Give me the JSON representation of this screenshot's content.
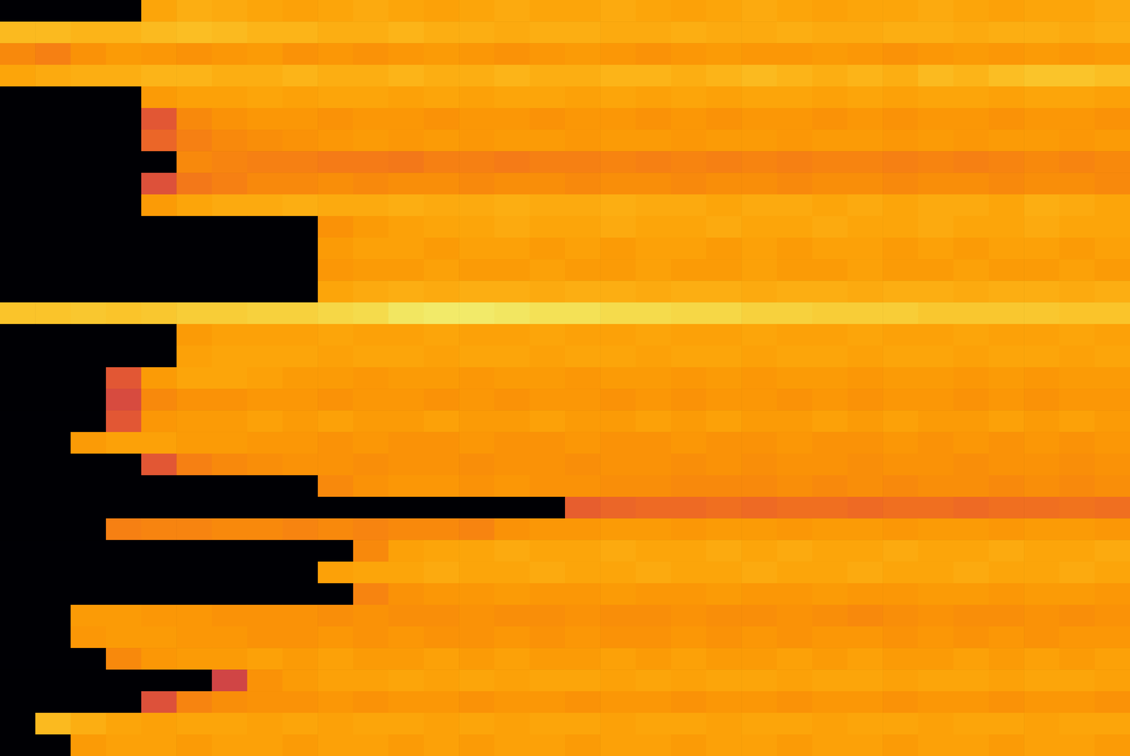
{
  "chart_data": {
    "type": "heatmap",
    "color": "inferno",
    "zlim": [
      0,
      1
    ],
    "tick_labels": false,
    "values": [
      [
        0,
        0,
        0,
        0,
        0.8,
        0.82,
        0.81,
        0.8,
        0.79,
        0.8,
        0.81,
        0.8,
        0.79,
        0.8,
        0.81,
        0.8,
        0.8,
        0.81,
        0.8,
        0.79,
        0.8,
        0.81,
        0.8,
        0.79,
        0.8,
        0.8,
        0.81,
        0.8,
        0.79,
        0.8,
        0.8,
        0.81
      ],
      [
        0.84,
        0.84,
        0.83,
        0.83,
        0.84,
        0.85,
        0.84,
        0.83,
        0.83,
        0.82,
        0.82,
        0.83,
        0.82,
        0.82,
        0.81,
        0.82,
        0.82,
        0.81,
        0.81,
        0.82,
        0.81,
        0.81,
        0.82,
        0.81,
        0.81,
        0.82,
        0.82,
        0.81,
        0.82,
        0.82,
        0.81,
        0.82
      ],
      [
        0.74,
        0.72,
        0.76,
        0.78,
        0.77,
        0.76,
        0.77,
        0.78,
        0.76,
        0.77,
        0.76,
        0.77,
        0.78,
        0.77,
        0.76,
        0.77,
        0.78,
        0.77,
        0.76,
        0.77,
        0.78,
        0.77,
        0.77,
        0.78,
        0.77,
        0.76,
        0.77,
        0.78,
        0.77,
        0.78,
        0.77,
        0.78
      ],
      [
        0.8,
        0.81,
        0.82,
        0.82,
        0.83,
        0.83,
        0.82,
        0.82,
        0.83,
        0.82,
        0.82,
        0.83,
        0.82,
        0.82,
        0.83,
        0.82,
        0.82,
        0.83,
        0.83,
        0.82,
        0.83,
        0.84,
        0.83,
        0.82,
        0.83,
        0.82,
        0.84,
        0.83,
        0.85,
        0.86,
        0.86,
        0.85
      ],
      [
        0,
        0,
        0,
        0,
        0.78,
        0.79,
        0.79,
        0.8,
        0.79,
        0.8,
        0.8,
        0.79,
        0.8,
        0.79,
        0.8,
        0.8,
        0.79,
        0.8,
        0.79,
        0.8,
        0.79,
        0.8,
        0.8,
        0.79,
        0.8,
        0.79,
        0.8,
        0.8,
        0.79,
        0.8,
        0.8,
        0.79
      ],
      [
        0,
        0,
        0,
        0,
        0.62,
        0.74,
        0.76,
        0.77,
        0.77,
        0.76,
        0.77,
        0.77,
        0.76,
        0.77,
        0.77,
        0.76,
        0.77,
        0.77,
        0.76,
        0.77,
        0.76,
        0.77,
        0.77,
        0.76,
        0.77,
        0.76,
        0.77,
        0.77,
        0.76,
        0.77,
        0.77,
        0.76
      ],
      [
        0,
        0,
        0,
        0,
        0.66,
        0.72,
        0.74,
        0.75,
        0.76,
        0.77,
        0.78,
        0.77,
        0.78,
        0.77,
        0.78,
        0.78,
        0.77,
        0.78,
        0.78,
        0.77,
        0.78,
        0.78,
        0.77,
        0.78,
        0.78,
        0.77,
        0.78,
        0.77,
        0.78,
        0.78,
        0.77,
        0.78
      ],
      [
        0,
        0,
        0,
        0,
        0,
        0.74,
        0.73,
        0.72,
        0.72,
        0.71,
        0.71,
        0.7,
        0.72,
        0.72,
        0.71,
        0.72,
        0.72,
        0.73,
        0.72,
        0.73,
        0.72,
        0.73,
        0.72,
        0.73,
        0.73,
        0.72,
        0.73,
        0.72,
        0.73,
        0.74,
        0.73,
        0.74
      ],
      [
        0,
        0,
        0,
        0,
        0.6,
        0.7,
        0.72,
        0.74,
        0.74,
        0.75,
        0.74,
        0.75,
        0.75,
        0.74,
        0.75,
        0.75,
        0.74,
        0.75,
        0.75,
        0.74,
        0.75,
        0.75,
        0.74,
        0.75,
        0.75,
        0.74,
        0.75,
        0.75,
        0.74,
        0.75,
        0.75,
        0.74
      ],
      [
        0,
        0,
        0,
        0,
        0.78,
        0.8,
        0.81,
        0.81,
        0.82,
        0.81,
        0.81,
        0.82,
        0.81,
        0.81,
        0.82,
        0.81,
        0.81,
        0.82,
        0.81,
        0.81,
        0.8,
        0.81,
        0.81,
        0.8,
        0.81,
        0.8,
        0.81,
        0.81,
        0.8,
        0.82,
        0.81,
        0.8
      ],
      [
        0,
        0,
        0,
        0,
        0,
        0,
        0,
        0,
        0,
        0.76,
        0.78,
        0.79,
        0.8,
        0.8,
        0.81,
        0.8,
        0.8,
        0.81,
        0.8,
        0.8,
        0.81,
        0.8,
        0.8,
        0.81,
        0.8,
        0.8,
        0.81,
        0.8,
        0.8,
        0.81,
        0.8,
        0.8
      ],
      [
        0,
        0,
        0,
        0,
        0,
        0,
        0,
        0,
        0,
        0.78,
        0.79,
        0.79,
        0.78,
        0.79,
        0.79,
        0.78,
        0.79,
        0.78,
        0.79,
        0.79,
        0.78,
        0.79,
        0.78,
        0.79,
        0.79,
        0.78,
        0.79,
        0.78,
        0.79,
        0.79,
        0.78,
        0.79
      ],
      [
        0,
        0,
        0,
        0,
        0,
        0,
        0,
        0,
        0,
        0.77,
        0.78,
        0.78,
        0.79,
        0.78,
        0.78,
        0.79,
        0.78,
        0.78,
        0.79,
        0.78,
        0.78,
        0.79,
        0.78,
        0.78,
        0.79,
        0.78,
        0.78,
        0.79,
        0.78,
        0.78,
        0.79,
        0.78
      ],
      [
        0,
        0,
        0,
        0,
        0,
        0,
        0,
        0,
        0,
        0.8,
        0.81,
        0.82,
        0.81,
        0.82,
        0.82,
        0.81,
        0.82,
        0.82,
        0.81,
        0.82,
        0.82,
        0.81,
        0.82,
        0.82,
        0.81,
        0.82,
        0.82,
        0.81,
        0.82,
        0.82,
        0.81,
        0.82
      ],
      [
        0.86,
        0.86,
        0.87,
        0.86,
        0.87,
        0.88,
        0.88,
        0.89,
        0.89,
        0.9,
        0.91,
        0.93,
        0.94,
        0.94,
        0.93,
        0.92,
        0.92,
        0.91,
        0.91,
        0.9,
        0.9,
        0.89,
        0.89,
        0.88,
        0.88,
        0.88,
        0.87,
        0.87,
        0.87,
        0.87,
        0.86,
        0.86
      ],
      [
        0,
        0,
        0,
        0,
        0,
        0.78,
        0.79,
        0.79,
        0.79,
        0.8,
        0.79,
        0.79,
        0.8,
        0.79,
        0.79,
        0.8,
        0.79,
        0.79,
        0.8,
        0.79,
        0.79,
        0.8,
        0.79,
        0.79,
        0.8,
        0.79,
        0.79,
        0.8,
        0.79,
        0.79,
        0.8,
        0.79
      ],
      [
        0,
        0,
        0,
        0,
        0,
        0.79,
        0.8,
        0.8,
        0.8,
        0.79,
        0.8,
        0.8,
        0.79,
        0.8,
        0.8,
        0.79,
        0.8,
        0.8,
        0.79,
        0.8,
        0.8,
        0.79,
        0.8,
        0.8,
        0.79,
        0.8,
        0.8,
        0.79,
        0.8,
        0.8,
        0.79,
        0.8
      ],
      [
        0,
        0,
        0,
        0.62,
        0.78,
        0.8,
        0.8,
        0.79,
        0.78,
        0.78,
        0.77,
        0.78,
        0.78,
        0.77,
        0.78,
        0.78,
        0.77,
        0.78,
        0.78,
        0.77,
        0.78,
        0.77,
        0.78,
        0.78,
        0.77,
        0.78,
        0.78,
        0.77,
        0.78,
        0.77,
        0.78,
        0.78
      ],
      [
        0,
        0,
        0,
        0.58,
        0.74,
        0.76,
        0.76,
        0.77,
        0.77,
        0.76,
        0.77,
        0.77,
        0.76,
        0.77,
        0.76,
        0.77,
        0.77,
        0.76,
        0.77,
        0.76,
        0.77,
        0.77,
        0.76,
        0.77,
        0.76,
        0.77,
        0.77,
        0.76,
        0.77,
        0.76,
        0.77,
        0.77
      ],
      [
        0,
        0,
        0,
        0.62,
        0.77,
        0.78,
        0.78,
        0.79,
        0.78,
        0.79,
        0.78,
        0.78,
        0.79,
        0.78,
        0.78,
        0.79,
        0.78,
        0.78,
        0.79,
        0.78,
        0.79,
        0.78,
        0.78,
        0.79,
        0.78,
        0.79,
        0.78,
        0.78,
        0.79,
        0.78,
        0.79,
        0.78
      ],
      [
        0,
        0,
        0.78,
        0.79,
        0.79,
        0.78,
        0.78,
        0.77,
        0.77,
        0.76,
        0.77,
        0.76,
        0.76,
        0.77,
        0.76,
        0.76,
        0.77,
        0.76,
        0.76,
        0.77,
        0.76,
        0.76,
        0.77,
        0.76,
        0.76,
        0.77,
        0.76,
        0.77,
        0.76,
        0.77,
        0.76,
        0.77
      ],
      [
        0,
        0,
        0,
        0,
        0.62,
        0.72,
        0.74,
        0.75,
        0.76,
        0.76,
        0.75,
        0.76,
        0.76,
        0.75,
        0.76,
        0.76,
        0.75,
        0.76,
        0.76,
        0.75,
        0.76,
        0.75,
        0.76,
        0.76,
        0.75,
        0.76,
        0.76,
        0.75,
        0.76,
        0.76,
        0.75,
        0.76
      ],
      [
        0,
        0,
        0,
        0,
        0,
        0,
        0,
        0,
        0,
        0.74,
        0.76,
        0.77,
        0.77,
        0.76,
        0.77,
        0.76,
        0.76,
        0.75,
        0.75,
        0.74,
        0.74,
        0.74,
        0.75,
        0.74,
        0.75,
        0.74,
        0.75,
        0.75,
        0.74,
        0.75,
        0.74,
        0.75
      ],
      [
        0,
        0,
        0,
        0,
        0,
        0,
        0,
        0,
        0,
        0,
        0,
        0,
        0,
        0,
        0,
        0,
        0.64,
        0.66,
        0.67,
        0.67,
        0.68,
        0.67,
        0.68,
        0.68,
        0.67,
        0.68,
        0.68,
        0.67,
        0.68,
        0.68,
        0.69,
        0.68
      ],
      [
        0,
        0,
        0,
        0.72,
        0.73,
        0.73,
        0.74,
        0.74,
        0.73,
        0.74,
        0.73,
        0.74,
        0.74,
        0.73,
        0.76,
        0.77,
        0.77,
        0.78,
        0.78,
        0.77,
        0.78,
        0.78,
        0.77,
        0.78,
        0.78,
        0.77,
        0.78,
        0.78,
        0.77,
        0.78,
        0.78,
        0.77
      ],
      [
        0,
        0,
        0,
        0,
        0,
        0,
        0,
        0,
        0,
        0,
        0.74,
        0.79,
        0.8,
        0.8,
        0.81,
        0.8,
        0.8,
        0.81,
        0.8,
        0.8,
        0.81,
        0.8,
        0.81,
        0.8,
        0.8,
        0.81,
        0.8,
        0.8,
        0.81,
        0.8,
        0.8,
        0.81
      ],
      [
        0,
        0,
        0,
        0,
        0,
        0,
        0,
        0,
        0,
        0.79,
        0.8,
        0.8,
        0.81,
        0.8,
        0.8,
        0.81,
        0.8,
        0.8,
        0.81,
        0.8,
        0.8,
        0.81,
        0.8,
        0.8,
        0.81,
        0.8,
        0.8,
        0.81,
        0.8,
        0.8,
        0.81,
        0.8
      ],
      [
        0,
        0,
        0,
        0,
        0,
        0,
        0,
        0,
        0,
        0,
        0.73,
        0.76,
        0.77,
        0.77,
        0.78,
        0.77,
        0.77,
        0.78,
        0.77,
        0.77,
        0.78,
        0.77,
        0.77,
        0.78,
        0.77,
        0.77,
        0.78,
        0.78,
        0.77,
        0.78,
        0.78,
        0.77
      ],
      [
        0,
        0,
        0.78,
        0.78,
        0.77,
        0.77,
        0.76,
        0.76,
        0.76,
        0.75,
        0.76,
        0.75,
        0.75,
        0.76,
        0.75,
        0.75,
        0.76,
        0.75,
        0.75,
        0.76,
        0.75,
        0.75,
        0.76,
        0.75,
        0.74,
        0.75,
        0.76,
        0.75,
        0.75,
        0.76,
        0.75,
        0.76
      ],
      [
        0,
        0,
        0.77,
        0.78,
        0.78,
        0.77,
        0.77,
        0.76,
        0.76,
        0.77,
        0.76,
        0.77,
        0.76,
        0.76,
        0.77,
        0.76,
        0.77,
        0.76,
        0.76,
        0.77,
        0.76,
        0.77,
        0.76,
        0.77,
        0.77,
        0.76,
        0.77,
        0.76,
        0.77,
        0.76,
        0.77,
        0.77
      ],
      [
        0,
        0,
        0,
        0.74,
        0.77,
        0.78,
        0.78,
        0.79,
        0.78,
        0.79,
        0.78,
        0.78,
        0.79,
        0.78,
        0.79,
        0.78,
        0.78,
        0.79,
        0.78,
        0.79,
        0.78,
        0.78,
        0.79,
        0.78,
        0.79,
        0.78,
        0.78,
        0.79,
        0.78,
        0.79,
        0.78,
        0.79
      ],
      [
        0,
        0,
        0,
        0,
        0,
        0,
        0.56,
        0.76,
        0.78,
        0.79,
        0.79,
        0.8,
        0.79,
        0.8,
        0.79,
        0.8,
        0.8,
        0.79,
        0.8,
        0.79,
        0.8,
        0.8,
        0.79,
        0.8,
        0.8,
        0.79,
        0.8,
        0.8,
        0.79,
        0.8,
        0.8,
        0.79
      ],
      [
        0,
        0,
        0,
        0,
        0.6,
        0.73,
        0.75,
        0.76,
        0.76,
        0.77,
        0.76,
        0.77,
        0.77,
        0.76,
        0.77,
        0.77,
        0.76,
        0.77,
        0.77,
        0.76,
        0.77,
        0.77,
        0.76,
        0.77,
        0.77,
        0.76,
        0.77,
        0.77,
        0.76,
        0.77,
        0.77,
        0.76
      ],
      [
        0,
        0.84,
        0.82,
        0.8,
        0.79,
        0.8,
        0.8,
        0.79,
        0.8,
        0.79,
        0.8,
        0.8,
        0.79,
        0.8,
        0.79,
        0.8,
        0.8,
        0.79,
        0.8,
        0.8,
        0.79,
        0.8,
        0.8,
        0.79,
        0.8,
        0.8,
        0.79,
        0.8,
        0.8,
        0.79,
        0.8,
        0.8
      ],
      [
        0,
        0,
        0.78,
        0.79,
        0.79,
        0.78,
        0.79,
        0.79,
        0.78,
        0.79,
        0.79,
        0.78,
        0.79,
        0.78,
        0.79,
        0.79,
        0.78,
        0.79,
        0.79,
        0.78,
        0.79,
        0.79,
        0.78,
        0.79,
        0.79,
        0.78,
        0.79,
        0.79,
        0.78,
        0.79,
        0.79,
        0.78
      ]
    ]
  }
}
